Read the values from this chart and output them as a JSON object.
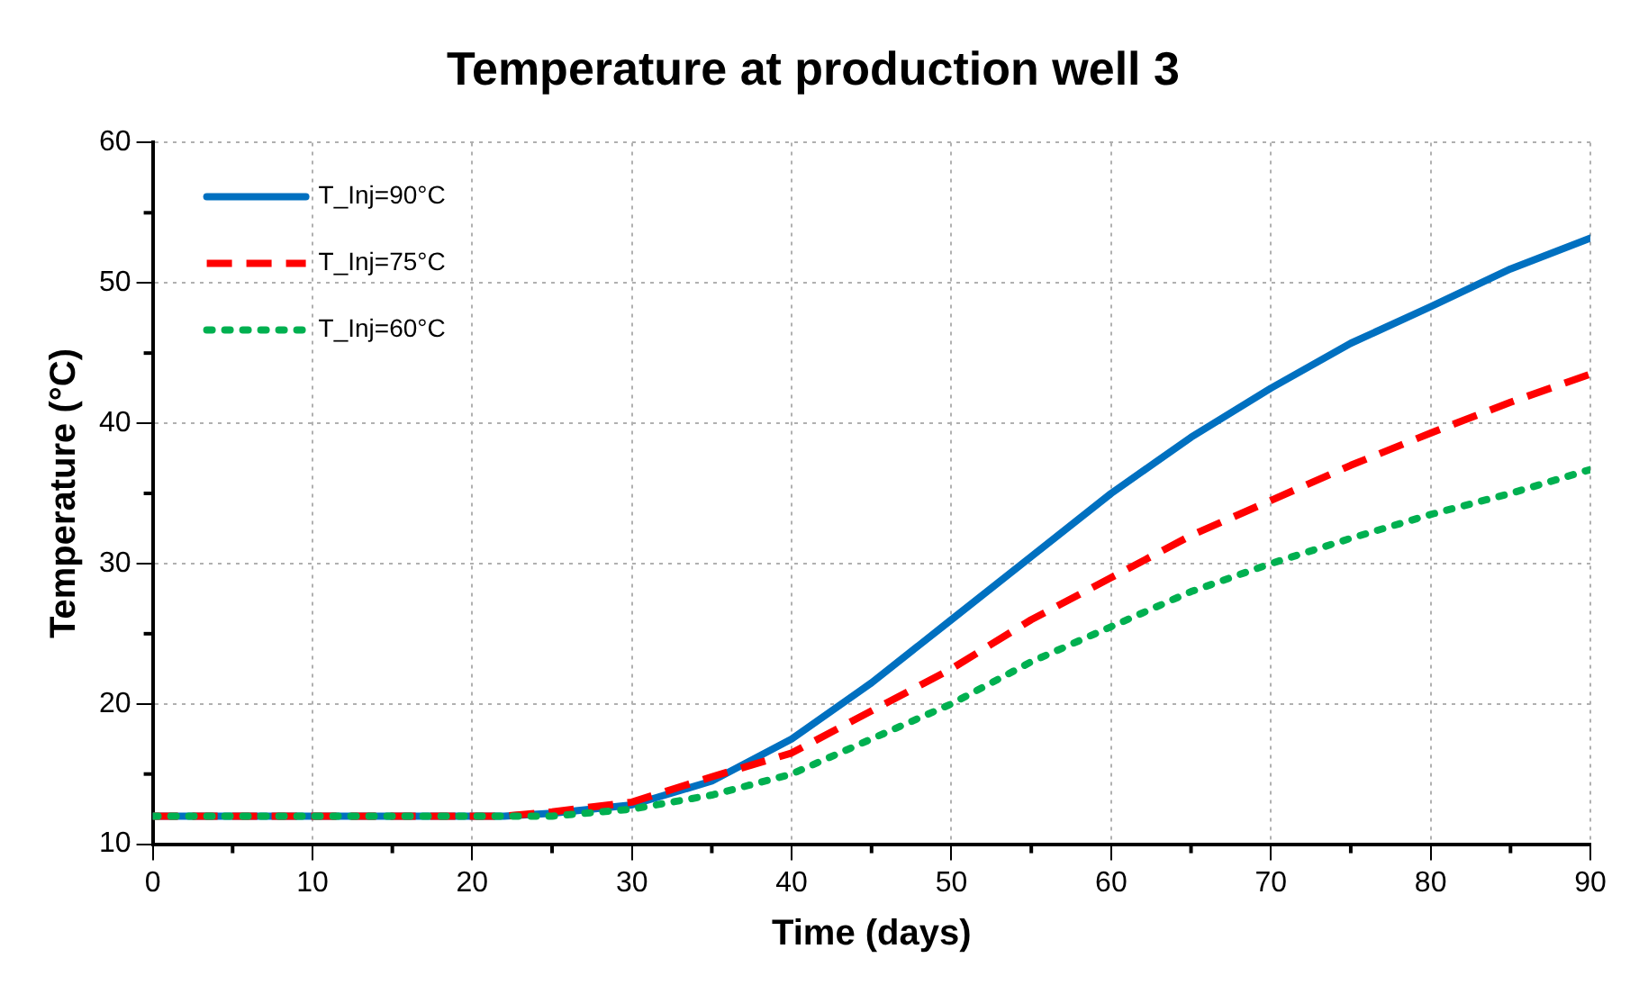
{
  "chart_data": {
    "type": "line",
    "title": "Temperature at production well 3",
    "xlabel": "Time (days)",
    "ylabel": "Temperature (°C)",
    "x": [
      0,
      5,
      10,
      15,
      20,
      22,
      25,
      30,
      35,
      40,
      45,
      50,
      55,
      60,
      65,
      70,
      75,
      80,
      85,
      90
    ],
    "series": [
      {
        "name": "T_Inj=90°C",
        "color": "#0070c0",
        "line_style": "solid",
        "values": [
          12,
          12,
          12,
          12,
          12,
          12,
          12.2,
          12.8,
          14.5,
          17.5,
          21.5,
          26,
          30.5,
          35,
          39,
          42.5,
          45.7,
          48.3,
          51,
          53.2
        ]
      },
      {
        "name": "T_Inj=75°C",
        "color": "#ff0000",
        "line_style": "dashed",
        "values": [
          12,
          12,
          12,
          12,
          12,
          12,
          12.3,
          13,
          14.8,
          16.5,
          19.5,
          22.5,
          26,
          29,
          32,
          34.5,
          37,
          39.3,
          41.5,
          43.5
        ]
      },
      {
        "name": "T_Inj=60°C",
        "color": "#00b050",
        "line_style": "dotted",
        "values": [
          12,
          12,
          12,
          12,
          12,
          12,
          12,
          12.5,
          13.5,
          15,
          17.5,
          20,
          23,
          25.5,
          28,
          30,
          31.8,
          33.5,
          35,
          36.7
        ]
      }
    ],
    "xlim": [
      0,
      90
    ],
    "xticks": [
      0,
      10,
      20,
      30,
      40,
      50,
      60,
      70,
      80,
      90
    ],
    "ylim": [
      10,
      60
    ],
    "yticks": [
      10,
      20,
      30,
      40,
      50,
      60
    ],
    "grid": true,
    "legend": "top left",
    "marker": "none"
  }
}
